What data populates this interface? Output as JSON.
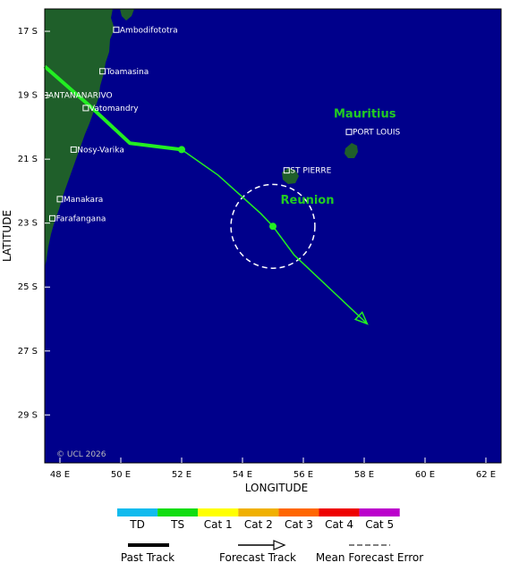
{
  "axes": {
    "xlabel": "LONGITUDE",
    "ylabel": "LATITUDE",
    "lon_range": [
      47.5,
      62.5
    ],
    "lat_range": [
      -30.5,
      -16.3
    ],
    "x_ticks": [
      "48 E",
      "50 E",
      "52 E",
      "54 E",
      "56 E",
      "58 E",
      "60 E",
      "62 E"
    ],
    "x_tick_values": [
      48,
      50,
      52,
      54,
      56,
      58,
      60,
      62
    ],
    "y_ticks": [
      "17 S",
      "19 S",
      "21 S",
      "23 S",
      "25 S",
      "27 S",
      "29 S"
    ],
    "y_tick_values": [
      -17,
      -19,
      -21,
      -23,
      -25,
      -27,
      -29
    ]
  },
  "cities": [
    {
      "name": "Ambodifototra",
      "lon": 49.85,
      "lat": -16.95
    },
    {
      "name": "Toamasina",
      "lon": 49.4,
      "lat": -18.25
    },
    {
      "name": "ANTANANARIVO",
      "lon": 47.5,
      "lat": -19.0
    },
    {
      "name": "Vatomandry",
      "lon": 48.85,
      "lat": -19.4
    },
    {
      "name": "Nosy-Varika",
      "lon": 48.45,
      "lat": -20.7
    },
    {
      "name": "Manakara",
      "lon": 48.0,
      "lat": -22.25
    },
    {
      "name": "Farafangana",
      "lon": 47.75,
      "lat": -22.85
    },
    {
      "name": "PORT LOUIS",
      "lon": 57.5,
      "lat": -20.15
    },
    {
      "name": "ST PIERRE",
      "lon": 55.45,
      "lat": -21.35
    }
  ],
  "regions": [
    {
      "name": "Mauritius",
      "lon": 57.0,
      "lat": -19.7
    },
    {
      "name": "Reunion",
      "lon": 55.25,
      "lat": -22.4
    }
  ],
  "copyright": "© UCL 2026",
  "storm": {
    "past_track": [
      [
        47.5,
        -18.1
      ],
      [
        49.0,
        -19.35
      ],
      [
        50.3,
        -20.5
      ],
      [
        52.0,
        -20.7
      ]
    ],
    "forecast_track": [
      [
        52.0,
        -20.7
      ],
      [
        53.2,
        -21.5
      ],
      [
        54.6,
        -22.7
      ],
      [
        55.0,
        -23.1
      ],
      [
        55.7,
        -24.0
      ],
      [
        58.1,
        -26.15
      ]
    ],
    "points": [
      [
        52.0,
        -20.7
      ],
      [
        55.0,
        -23.1
      ]
    ],
    "error_circle": {
      "lon": 55.0,
      "lat": -23.1,
      "radius_deg": 1.38
    },
    "track_color": "#22ee22"
  },
  "colors": {
    "ocean": "#00008b",
    "land": "#1f5f2a",
    "track": "#22ee22"
  },
  "legend": {
    "categories": [
      {
        "label": "TD",
        "color": "#11bbee"
      },
      {
        "label": "TS",
        "color": "#11dd11"
      },
      {
        "label": "Cat 1",
        "color": "#ffff00"
      },
      {
        "label": "Cat 2",
        "color": "#f0b000"
      },
      {
        "label": "Cat 3",
        "color": "#ff6600"
      },
      {
        "label": "Cat 4",
        "color": "#ee0000"
      },
      {
        "label": "Cat 5",
        "color": "#bb00cc"
      }
    ],
    "past_track": "Past Track",
    "forecast_track": "Forecast Track",
    "mean_error": "Mean Forecast Error"
  }
}
